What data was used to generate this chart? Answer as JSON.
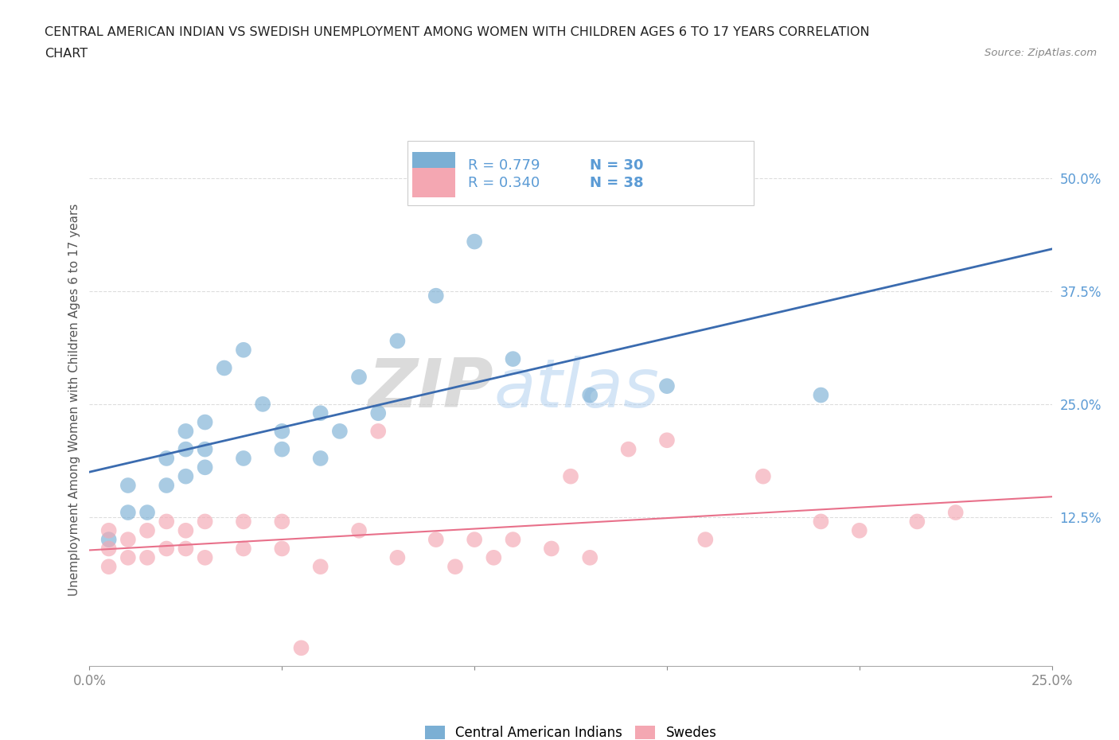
{
  "title_line1": "CENTRAL AMERICAN INDIAN VS SWEDISH UNEMPLOYMENT AMONG WOMEN WITH CHILDREN AGES 6 TO 17 YEARS CORRELATION",
  "title_line2": "CHART",
  "source_text": "Source: ZipAtlas.com",
  "ylabel": "Unemployment Among Women with Children Ages 6 to 17 years",
  "xlim": [
    0.0,
    0.25
  ],
  "ylim": [
    -0.04,
    0.55
  ],
  "yticks": [
    0.125,
    0.25,
    0.375,
    0.5
  ],
  "ytick_labels": [
    "12.5%",
    "25.0%",
    "37.5%",
    "50.0%"
  ],
  "xtick_positions": [
    0.0,
    0.05,
    0.1,
    0.15,
    0.2,
    0.25
  ],
  "xtick_labels": [
    "0.0%",
    "",
    "",
    "",
    "",
    "25.0%"
  ],
  "blue_R": "0.779",
  "blue_N": "30",
  "pink_R": "0.340",
  "pink_N": "38",
  "blue_color": "#7BAFD4",
  "pink_color": "#F4A7B2",
  "blue_line_color": "#3A6BAF",
  "pink_line_color": "#E8708A",
  "tick_label_color": "#5B9BD5",
  "legend_label_blue": "Central American Indians",
  "legend_label_pink": "Swedes",
  "watermark_zip": "ZIP",
  "watermark_atlas": "atlas",
  "background_color": "#FFFFFF",
  "grid_color": "#DDDDDD",
  "blue_scatter_x": [
    0.005,
    0.01,
    0.01,
    0.015,
    0.02,
    0.02,
    0.025,
    0.025,
    0.025,
    0.03,
    0.03,
    0.03,
    0.035,
    0.04,
    0.04,
    0.045,
    0.05,
    0.05,
    0.06,
    0.06,
    0.065,
    0.07,
    0.075,
    0.08,
    0.09,
    0.1,
    0.11,
    0.13,
    0.15,
    0.19
  ],
  "blue_scatter_y": [
    0.1,
    0.13,
    0.16,
    0.13,
    0.16,
    0.19,
    0.17,
    0.2,
    0.22,
    0.18,
    0.2,
    0.23,
    0.29,
    0.19,
    0.31,
    0.25,
    0.2,
    0.22,
    0.19,
    0.24,
    0.22,
    0.28,
    0.24,
    0.32,
    0.37,
    0.43,
    0.3,
    0.26,
    0.27,
    0.26
  ],
  "pink_scatter_x": [
    0.005,
    0.005,
    0.005,
    0.01,
    0.01,
    0.015,
    0.015,
    0.02,
    0.02,
    0.025,
    0.025,
    0.03,
    0.03,
    0.04,
    0.04,
    0.05,
    0.05,
    0.055,
    0.06,
    0.07,
    0.075,
    0.08,
    0.09,
    0.095,
    0.1,
    0.105,
    0.11,
    0.12,
    0.125,
    0.13,
    0.14,
    0.15,
    0.16,
    0.175,
    0.19,
    0.2,
    0.215,
    0.225
  ],
  "pink_scatter_y": [
    0.07,
    0.09,
    0.11,
    0.08,
    0.1,
    0.08,
    0.11,
    0.09,
    0.12,
    0.09,
    0.11,
    0.08,
    0.12,
    0.09,
    0.12,
    0.09,
    0.12,
    -0.02,
    0.07,
    0.11,
    0.22,
    0.08,
    0.1,
    0.07,
    0.1,
    0.08,
    0.1,
    0.09,
    0.17,
    0.08,
    0.2,
    0.21,
    0.1,
    0.17,
    0.12,
    0.11,
    0.12,
    0.13
  ]
}
